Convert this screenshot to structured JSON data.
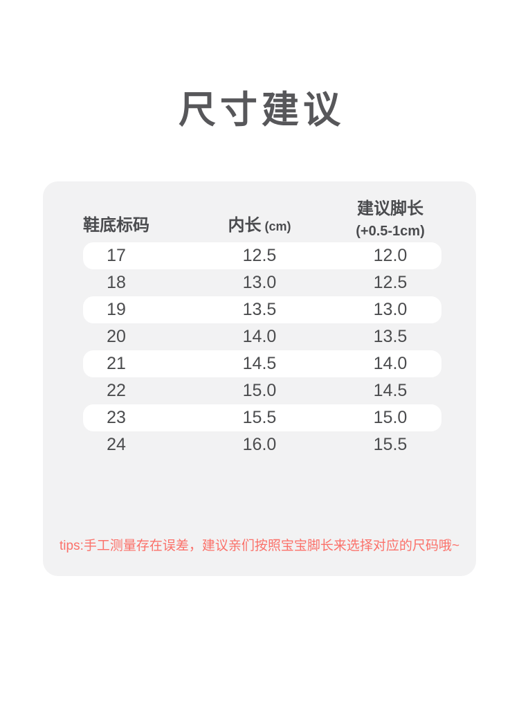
{
  "page": {
    "title": "尺寸建议"
  },
  "size_table": {
    "headers": {
      "col1": "鞋底标码",
      "col2_main": "内长",
      "col2_unit": "(cm)",
      "col3_line1": "建议脚长",
      "col3_line2": "(+0.5-1cm)"
    },
    "rows": [
      {
        "size": "17",
        "inner_length_cm": "12.5",
        "foot_length_cm": "12.0"
      },
      {
        "size": "18",
        "inner_length_cm": "13.0",
        "foot_length_cm": "12.5"
      },
      {
        "size": "19",
        "inner_length_cm": "13.5",
        "foot_length_cm": "13.0"
      },
      {
        "size": "20",
        "inner_length_cm": "14.0",
        "foot_length_cm": "13.5"
      },
      {
        "size": "21",
        "inner_length_cm": "14.5",
        "foot_length_cm": "14.0"
      },
      {
        "size": "22",
        "inner_length_cm": "15.0",
        "foot_length_cm": "14.5"
      },
      {
        "size": "23",
        "inner_length_cm": "15.5",
        "foot_length_cm": "15.0"
      },
      {
        "size": "24",
        "inner_length_cm": "16.0",
        "foot_length_cm": "15.5"
      }
    ]
  },
  "tips": {
    "text": "tips:手工测量存在误差，建议亲们按照宝宝脚长来选择对应的尺码哦~"
  },
  "colors": {
    "page_background": "#ffffff",
    "card_background": "#f2f2f3",
    "row_highlight": "#ffffff",
    "title_text": "#57575a",
    "table_text": "#4b4c4e",
    "tip_text": "#fb716a"
  }
}
